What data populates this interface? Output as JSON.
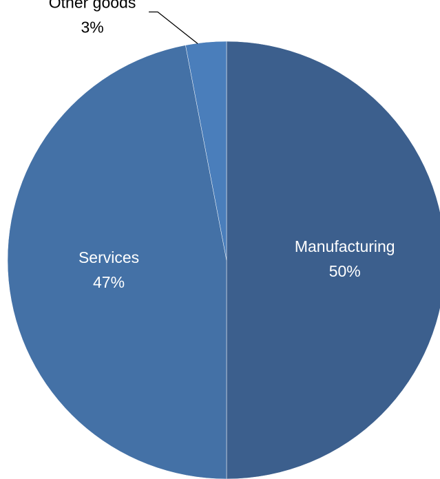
{
  "chart_data": {
    "type": "pie",
    "categories": [
      "Manufacturing",
      "Services",
      "Other goods"
    ],
    "values": [
      50,
      47,
      3
    ],
    "value_labels": [
      "50%",
      "47%",
      "3%"
    ],
    "colors": [
      "#3c5f8d",
      "#4471a6",
      "#4a7ebb"
    ]
  }
}
